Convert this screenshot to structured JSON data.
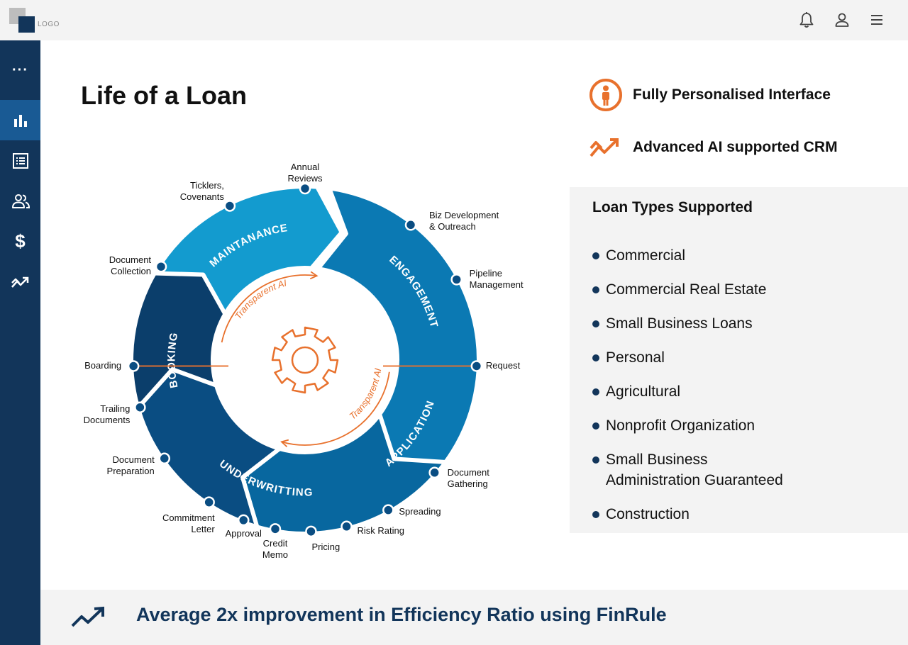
{
  "header": {
    "logo_text": "LOGO",
    "icons": [
      "bell-icon",
      "user-icon",
      "menu-icon"
    ]
  },
  "sidebar": {
    "items": [
      {
        "name": "more",
        "icon": "more-dots-icon",
        "active": false
      },
      {
        "name": "analytics",
        "icon": "bar-chart-icon",
        "active": true
      },
      {
        "name": "list",
        "icon": "list-icon",
        "active": false
      },
      {
        "name": "users",
        "icon": "users-icon",
        "active": false
      },
      {
        "name": "finance",
        "icon": "dollar-icon",
        "active": false
      },
      {
        "name": "trends",
        "icon": "trend-icon",
        "active": false
      }
    ]
  },
  "main": {
    "title": "Life of a Loan"
  },
  "features": [
    {
      "label": "Fully Personalised Interface",
      "icon": "person-circle-icon"
    },
    {
      "label": "Advanced AI supported CRM",
      "icon": "trend-icon"
    }
  ],
  "loan_types": {
    "title": "Loan Types Supported",
    "items": [
      [
        "Commercial"
      ],
      [
        "Commercial Real Estate"
      ],
      [
        "Small Business Loans"
      ],
      [
        "Personal"
      ],
      [
        "Agricultural"
      ],
      [
        "Nonprofit Organization"
      ],
      [
        "Small Business",
        "Administration Guaranteed"
      ],
      [
        "Construction"
      ]
    ]
  },
  "cycle": {
    "phases": [
      "MAINTANANCE",
      "ENGAGEMENT",
      "APPLICATION",
      "UNDERWRITTING",
      "BOOKING"
    ],
    "center": {
      "label_top": "Transparent AI",
      "label_bottom": "Transparent AI"
    },
    "steps": [
      [
        "Annual",
        "Reviews"
      ],
      [
        "Biz Development",
        "& Outreach"
      ],
      [
        "Pipeline",
        "Management"
      ],
      [
        "Request"
      ],
      [
        "Document",
        "Gathering"
      ],
      [
        "Spreading"
      ],
      [
        "Risk Rating"
      ],
      [
        "Pricing"
      ],
      [
        "Credit",
        "Memo"
      ],
      [
        "Approval"
      ],
      [
        "Commitment",
        "Letter"
      ],
      [
        "Document",
        "Preparation"
      ],
      [
        "Trailing",
        "Documents"
      ],
      [
        "Boarding"
      ],
      [
        "Document",
        "Collection"
      ],
      [
        "Ticklers,",
        "Covenants"
      ]
    ],
    "colors": {
      "maintenance": "#139bcf",
      "engagement": "#0b79b3",
      "application": "#08679f",
      "underwriting": "#0a4d82",
      "booking": "#0b3e6b",
      "accent": "#e8712d"
    }
  },
  "footer": {
    "text": "Average 2x improvement in Efficiency Ratio using FinRule",
    "icon": "trend-up-icon"
  }
}
